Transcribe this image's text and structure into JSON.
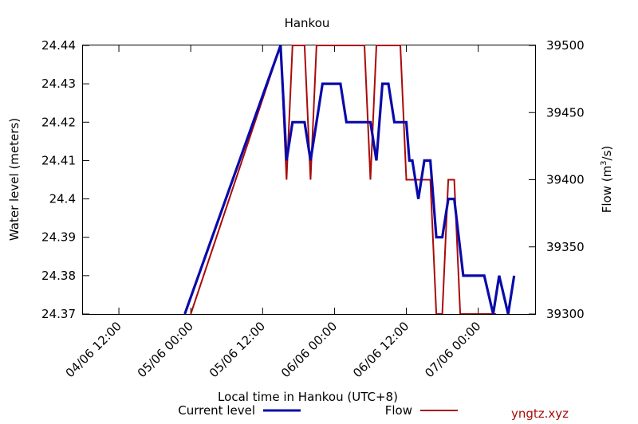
{
  "chart_data": {
    "type": "line",
    "title": "Hankou",
    "xlabel": "Local time in Hankou (UTC+8)",
    "ylabel": "Water level (meters)",
    "y2label_prefix": "Flow (m",
    "y2label_sup": "3",
    "y2label_suffix": "/s)",
    "x_unit": "hours since 04/06 00:00",
    "xlim": [
      6,
      81.5
    ],
    "ylim": [
      24.37,
      24.44
    ],
    "y2lim": [
      39300,
      39500
    ],
    "x_ticks": [
      {
        "x": 12,
        "label": "04/06 12:00"
      },
      {
        "x": 24,
        "label": "05/06 00:00"
      },
      {
        "x": 36,
        "label": "05/06 12:00"
      },
      {
        "x": 48,
        "label": "06/06 00:00"
      },
      {
        "x": 60,
        "label": "06/06 12:00"
      },
      {
        "x": 72,
        "label": "07/06 00:00"
      }
    ],
    "y_ticks": [
      "24.37",
      "24.38",
      "24.39",
      "24.4",
      "24.41",
      "24.42",
      "24.43",
      "24.44"
    ],
    "y2_ticks": [
      "39300",
      "39350",
      "39400",
      "39450",
      "39500"
    ],
    "grid": false,
    "legend_position": "bottom",
    "series": [
      {
        "name": "Current level",
        "axis": "left",
        "color": "#0a0aaa",
        "points": [
          [
            23.0,
            24.37
          ],
          [
            39.0,
            24.44
          ],
          [
            40.0,
            24.41
          ],
          [
            41.0,
            24.42
          ],
          [
            43.0,
            24.42
          ],
          [
            44.0,
            24.41
          ],
          [
            46.0,
            24.43
          ],
          [
            49.0,
            24.43
          ],
          [
            50.0,
            24.42
          ],
          [
            54.0,
            24.42
          ],
          [
            55.0,
            24.41
          ],
          [
            56.0,
            24.43
          ],
          [
            57.0,
            24.43
          ],
          [
            58.0,
            24.42
          ],
          [
            60.0,
            24.42
          ],
          [
            60.5,
            24.41
          ],
          [
            61.0,
            24.41
          ],
          [
            62.0,
            24.4
          ],
          [
            63.0,
            24.41
          ],
          [
            64.0,
            24.41
          ],
          [
            65.0,
            24.39
          ],
          [
            66.0,
            24.39
          ],
          [
            67.0,
            24.4
          ],
          [
            68.0,
            24.4
          ],
          [
            69.5,
            24.38
          ],
          [
            73.0,
            24.38
          ],
          [
            74.5,
            24.37
          ],
          [
            75.5,
            24.38
          ],
          [
            77.0,
            24.37
          ],
          [
            78.0,
            24.38
          ]
        ]
      },
      {
        "name": "Flow",
        "axis": "right",
        "color": "#aa0a0a",
        "points": [
          [
            24.0,
            39300
          ],
          [
            39.0,
            39500
          ],
          [
            40.0,
            39400
          ],
          [
            41.0,
            39500
          ],
          [
            43.0,
            39500
          ],
          [
            44.0,
            39400
          ],
          [
            45.0,
            39500
          ],
          [
            53.0,
            39500
          ],
          [
            54.0,
            39400
          ],
          [
            55.0,
            39500
          ],
          [
            59.0,
            39500
          ],
          [
            60.0,
            39400
          ],
          [
            64.0,
            39400
          ],
          [
            65.0,
            39300
          ],
          [
            66.0,
            39300
          ],
          [
            67.0,
            39400
          ],
          [
            68.0,
            39400
          ],
          [
            69.0,
            39300
          ],
          [
            75.0,
            39300
          ]
        ]
      }
    ],
    "watermark": "yngtz.xyz"
  }
}
